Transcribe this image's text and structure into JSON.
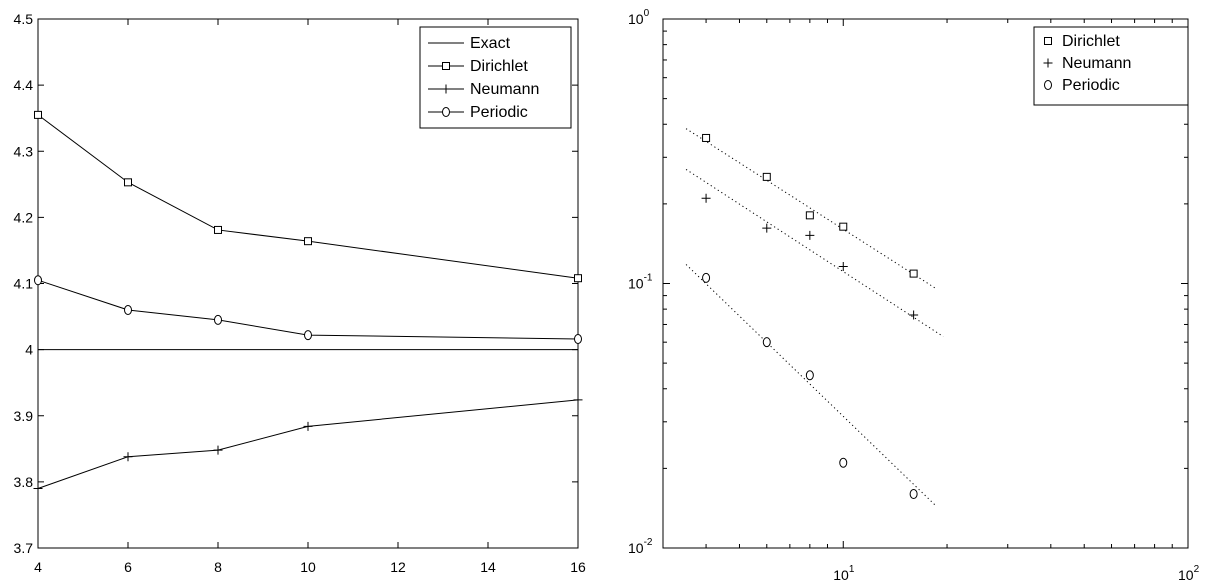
{
  "chart_data": [
    {
      "type": "line",
      "title": "",
      "xlabel": "",
      "ylabel": "",
      "x": [
        4,
        6,
        8,
        10,
        16
      ],
      "xlim": [
        4,
        16
      ],
      "ylim": [
        3.7,
        4.5
      ],
      "xticks": [
        4,
        6,
        8,
        10,
        12,
        14,
        16
      ],
      "xtick_labels": [
        "4",
        "6",
        "8",
        "10",
        "12",
        "14",
        "16"
      ],
      "yticks": [
        3.7,
        3.8,
        3.9,
        4.0,
        4.1,
        4.2,
        4.3,
        4.4,
        4.5
      ],
      "ytick_labels": [
        "3.7",
        "3.8",
        "3.9",
        "4",
        "4.1",
        "4.2",
        "4.3",
        "4.4",
        "4.5"
      ],
      "grid": false,
      "legend_position": "top-right",
      "series": [
        {
          "name": "Exact",
          "marker": "none",
          "values": [
            4.0,
            4.0,
            4.0,
            4.0,
            4.0
          ]
        },
        {
          "name": "Dirichlet",
          "marker": "square",
          "values": [
            4.355,
            4.253,
            4.181,
            4.164,
            4.108
          ]
        },
        {
          "name": "Neumann",
          "marker": "plus",
          "values": [
            3.79,
            3.838,
            3.848,
            3.884,
            3.924
          ]
        },
        {
          "name": "Periodic",
          "marker": "circle",
          "values": [
            4.105,
            4.06,
            4.045,
            4.022,
            4.016
          ]
        }
      ]
    },
    {
      "type": "scatter",
      "title": "",
      "xlabel": "",
      "ylabel": "",
      "xscale": "log",
      "yscale": "log",
      "xlim": [
        3,
        100
      ],
      "ylim": [
        0.01,
        1
      ],
      "xtick_labels": [
        {
          "base": "10",
          "exp": "1"
        },
        {
          "base": "10",
          "exp": "2"
        }
      ],
      "xtick_values": [
        10,
        100
      ],
      "ytick_labels": [
        {
          "base": "10",
          "exp": "0"
        },
        {
          "base": "10",
          "exp": "-1"
        },
        {
          "base": "10",
          "exp": "-2"
        }
      ],
      "ytick_values": [
        1,
        0.1,
        0.01
      ],
      "grid": false,
      "legend_position": "top-right",
      "series": [
        {
          "name": "Dirichlet",
          "marker": "square",
          "x": [
            4,
            6,
            8,
            10,
            16
          ],
          "values": [
            0.355,
            0.253,
            0.181,
            0.164,
            0.109
          ],
          "fit": {
            "x": [
              3.5,
              18.5
            ],
            "y": [
              0.385,
              0.096
            ]
          }
        },
        {
          "name": "Neumann",
          "marker": "plus",
          "x": [
            4,
            6,
            8,
            10,
            16
          ],
          "values": [
            0.21,
            0.162,
            0.152,
            0.116,
            0.076
          ],
          "fit": {
            "x": [
              3.5,
              19.5
            ],
            "y": [
              0.27,
              0.063
            ]
          }
        },
        {
          "name": "Periodic",
          "marker": "circle",
          "x": [
            4,
            6,
            8,
            10,
            16
          ],
          "values": [
            0.105,
            0.06,
            0.045,
            0.021,
            0.016
          ],
          "fit": {
            "x": [
              3.5,
              18.5
            ],
            "y": [
              0.118,
              0.0145
            ]
          }
        }
      ]
    }
  ]
}
